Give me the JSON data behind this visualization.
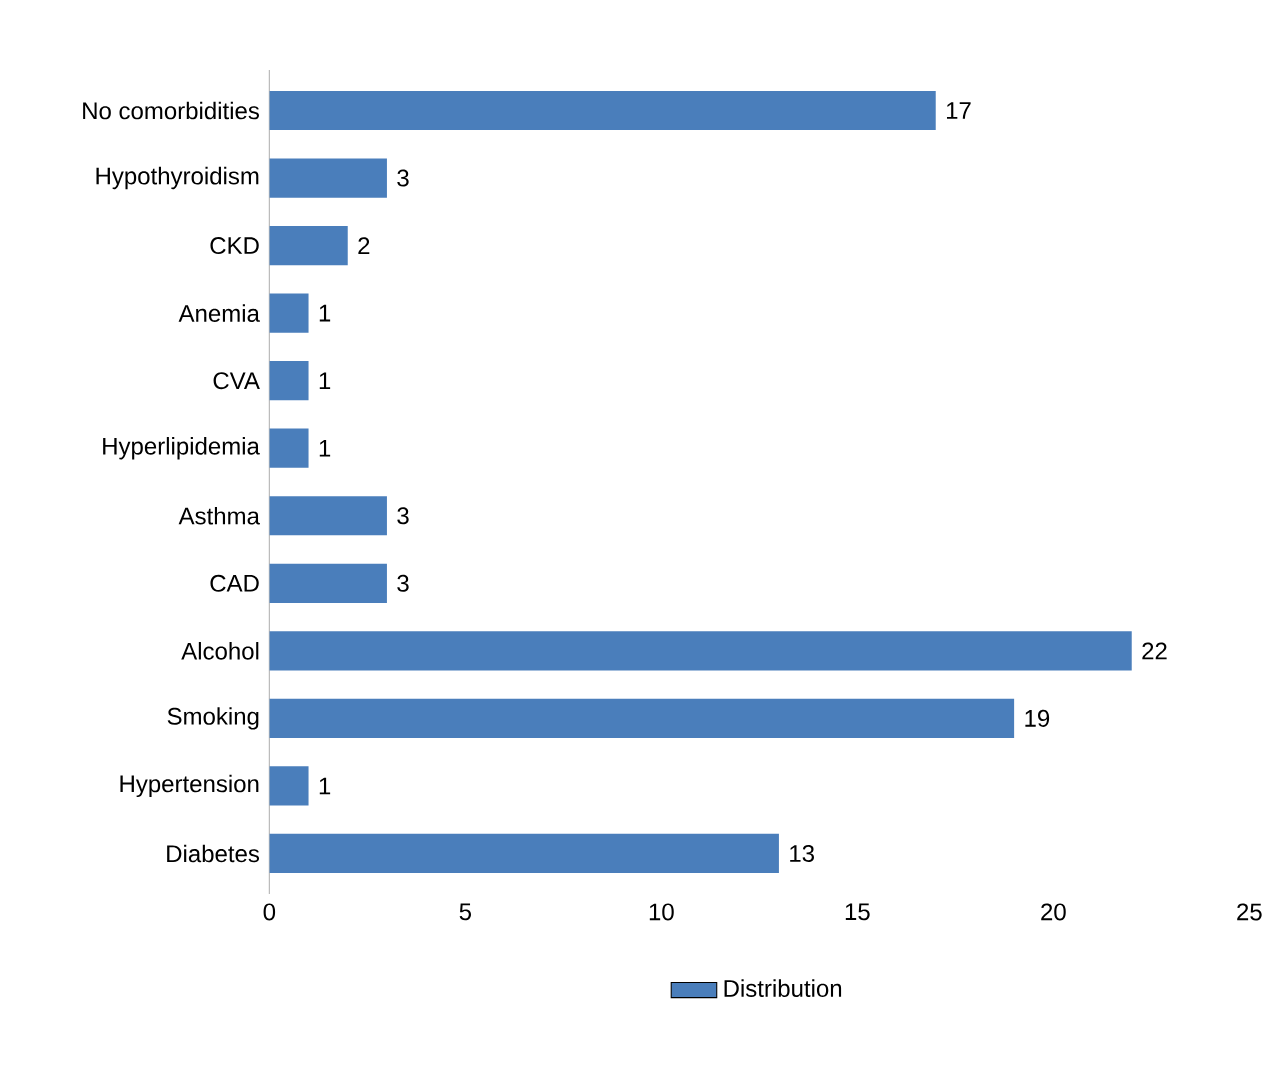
{
  "chart_data": {
    "type": "bar",
    "orientation": "horizontal",
    "categories": [
      "No comorbidities",
      "Hypothyroidism",
      "CKD",
      "Anemia",
      "CVA",
      "Hyperlipidemia",
      "Asthma",
      "CAD",
      "Alcohol",
      "Smoking",
      "Hypertension",
      "Diabetes"
    ],
    "series": [
      {
        "name": "Distribution",
        "color": "#4a7ebb",
        "values": [
          17,
          3,
          2,
          1,
          1,
          1,
          3,
          3,
          22,
          19,
          1,
          13
        ]
      }
    ],
    "xlim": [
      0,
      25
    ],
    "xticks": [
      0,
      5,
      10,
      15,
      20,
      25
    ],
    "data_labels": true,
    "legend": "bottom"
  }
}
